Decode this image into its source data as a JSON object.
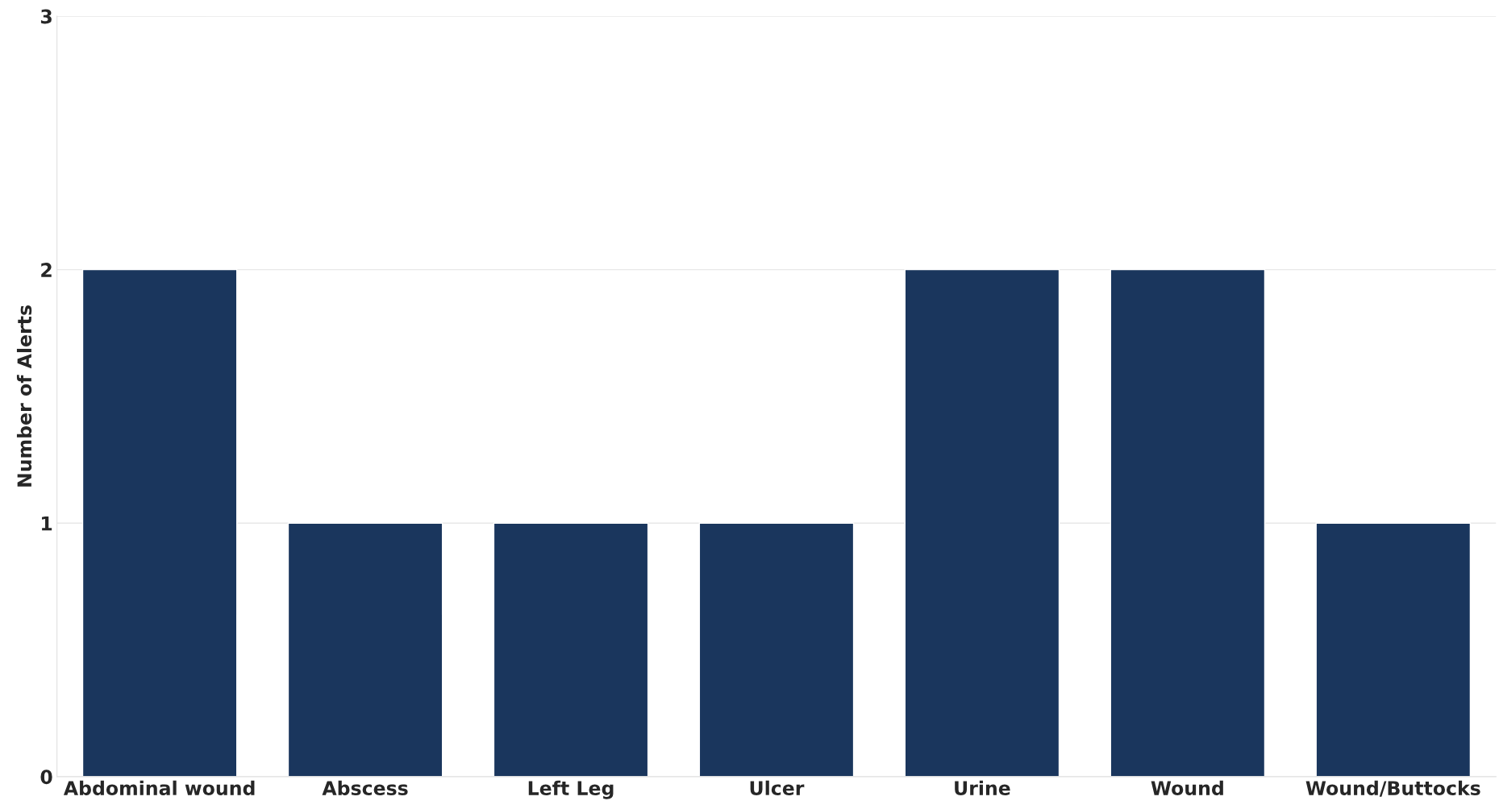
{
  "chart_data": {
    "type": "bar",
    "ylabel": "Number of Alerts",
    "categories": [
      "Abdominal wound",
      "Abscess",
      "Left Leg",
      "Ulcer",
      "Urine",
      "Wound",
      "Wound/Buttocks"
    ],
    "values": [
      2,
      1,
      1,
      1,
      2,
      2,
      1
    ],
    "color": "#1a365d",
    "ylim": [
      0,
      3
    ],
    "yticks": [
      0,
      1,
      2,
      3
    ],
    "grid": "y"
  }
}
